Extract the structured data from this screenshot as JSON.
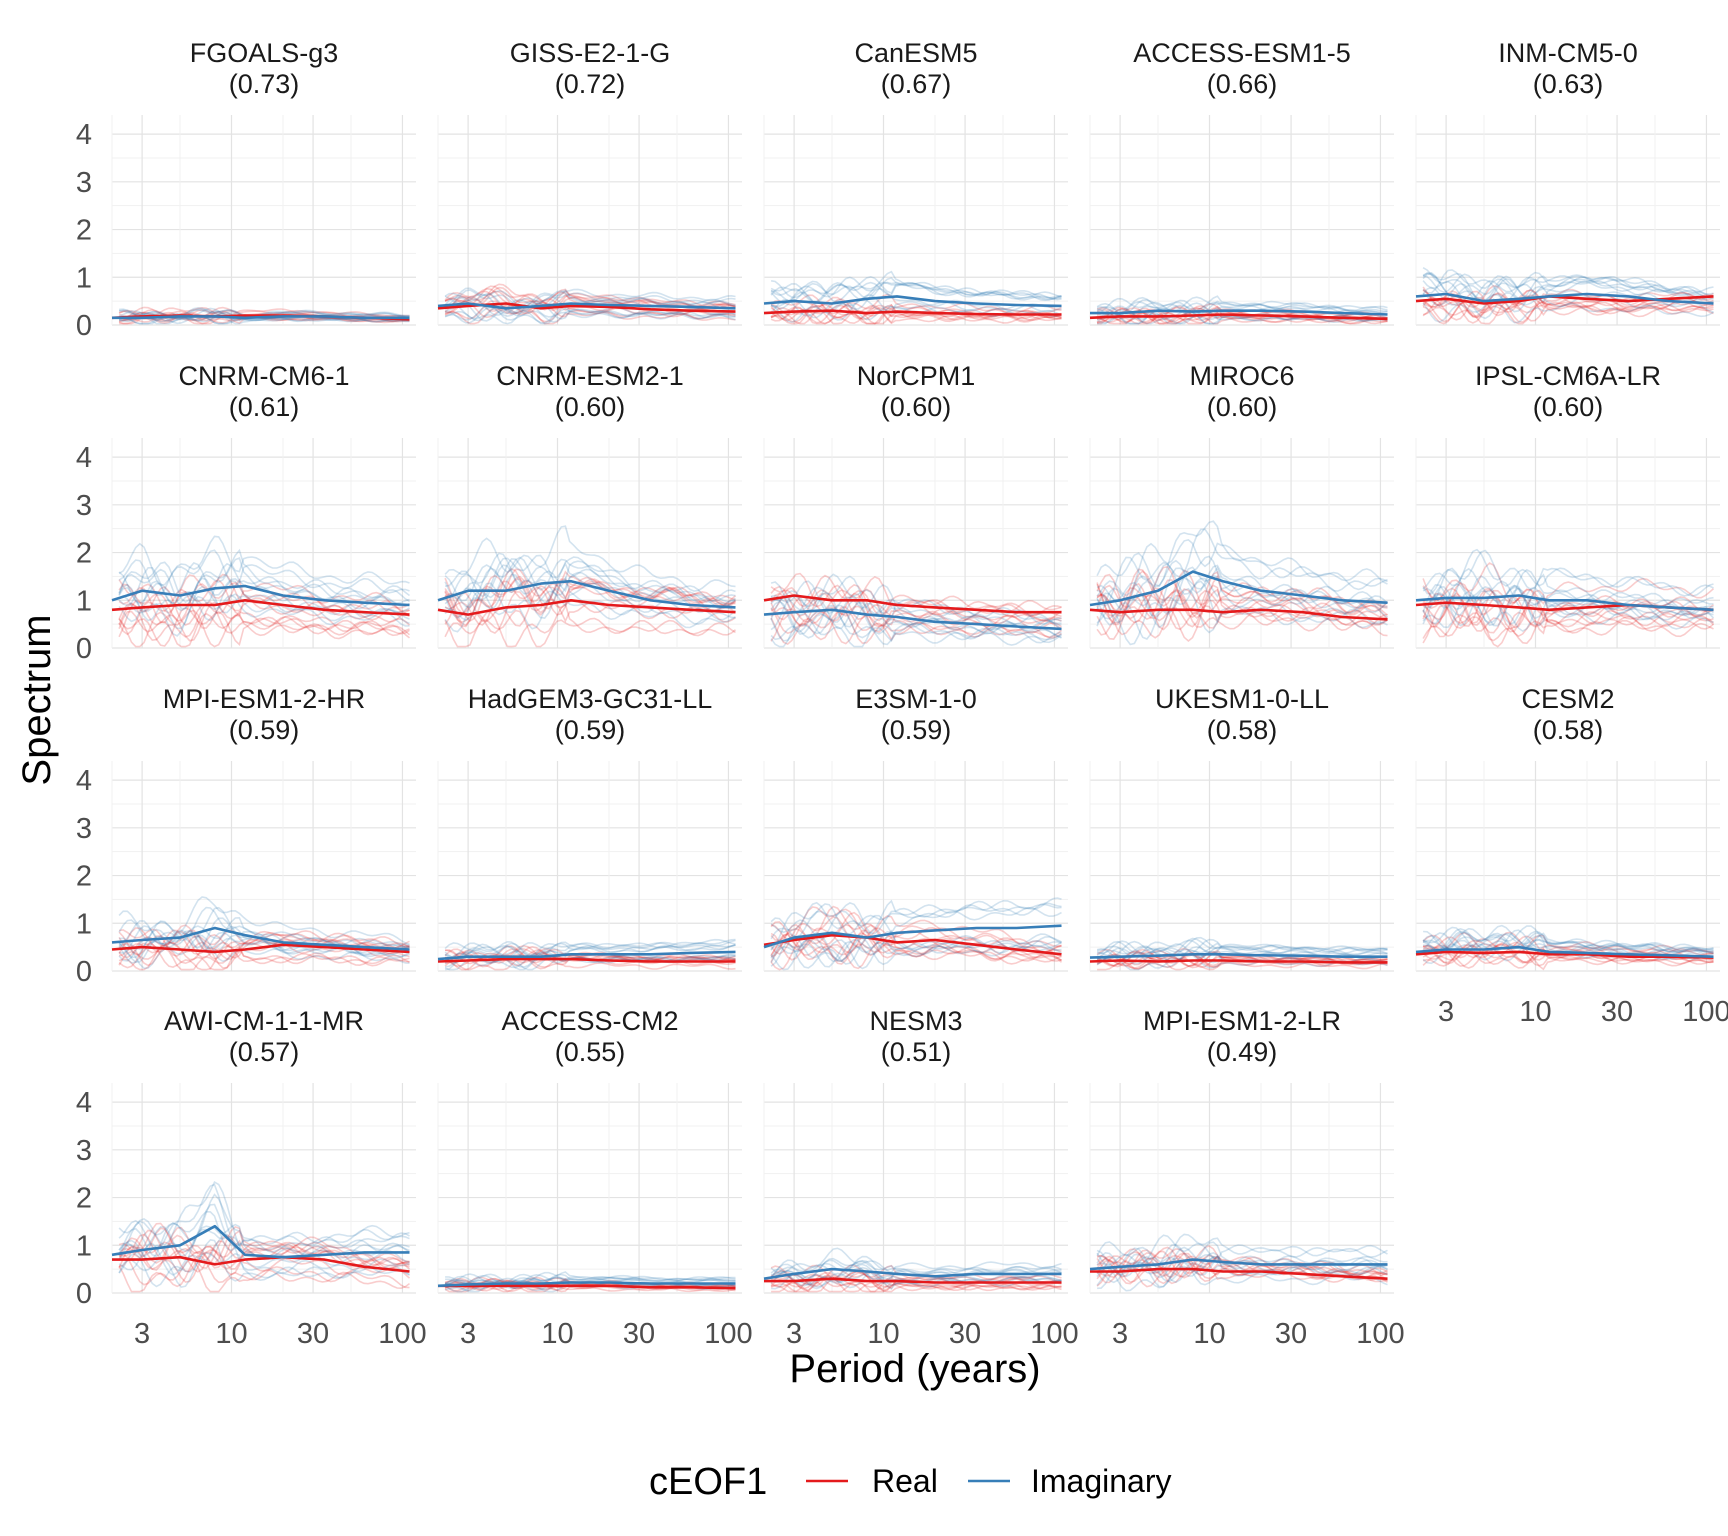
{
  "chart_data": {
    "type": "line",
    "x_axis_label": "Period (years)",
    "y_axis_label": "Spectrum",
    "x_scale": "log",
    "xlim": [
      2.0,
      120
    ],
    "ylim": [
      0,
      4.4
    ],
    "x_ticks": [
      3,
      10,
      30,
      100
    ],
    "x_tick_labels": [
      "3",
      "10",
      "30",
      "100"
    ],
    "y_ticks": [
      0,
      1,
      2,
      3,
      4
    ],
    "y_tick_labels": [
      "0",
      "1",
      "2",
      "3",
      "4"
    ],
    "grid": true,
    "legend": {
      "title": "cEOF1",
      "position": "bottom",
      "entries": [
        {
          "label": "Real",
          "color": "#e41a1c"
        },
        {
          "label": "Imaginary",
          "color": "#377eb8"
        }
      ]
    },
    "x": [
      2,
      3,
      5,
      8,
      12,
      20,
      35,
      60,
      110
    ],
    "panels": [
      {
        "model": "FGOALS-g3",
        "score": "(0.73)",
        "real": [
          0.15,
          0.18,
          0.2,
          0.18,
          0.2,
          0.2,
          0.18,
          0.15,
          0.12
        ],
        "imag": [
          0.15,
          0.15,
          0.18,
          0.18,
          0.15,
          0.18,
          0.18,
          0.15,
          0.15
        ],
        "spread": 0.2
      },
      {
        "model": "GISS-E2-1-G",
        "score": "(0.72)",
        "real": [
          0.35,
          0.4,
          0.45,
          0.35,
          0.4,
          0.38,
          0.33,
          0.3,
          0.28
        ],
        "imag": [
          0.4,
          0.45,
          0.35,
          0.4,
          0.45,
          0.42,
          0.4,
          0.38,
          0.35
        ],
        "spread": 0.35
      },
      {
        "model": "CanESM5",
        "score": "(0.67)",
        "real": [
          0.25,
          0.28,
          0.3,
          0.25,
          0.28,
          0.25,
          0.23,
          0.22,
          0.22
        ],
        "imag": [
          0.45,
          0.5,
          0.45,
          0.55,
          0.6,
          0.5,
          0.45,
          0.42,
          0.4
        ],
        "spread": 0.4
      },
      {
        "model": "ACCESS-ESM1-5",
        "score": "(0.66)",
        "real": [
          0.15,
          0.18,
          0.18,
          0.2,
          0.22,
          0.2,
          0.18,
          0.15,
          0.13
        ],
        "imag": [
          0.25,
          0.25,
          0.3,
          0.28,
          0.3,
          0.3,
          0.28,
          0.25,
          0.22
        ],
        "spread": 0.3
      },
      {
        "model": "INM-CM5-0",
        "score": "(0.63)",
        "real": [
          0.5,
          0.55,
          0.45,
          0.5,
          0.6,
          0.55,
          0.5,
          0.55,
          0.6
        ],
        "imag": [
          0.6,
          0.65,
          0.5,
          0.55,
          0.6,
          0.65,
          0.6,
          0.5,
          0.45
        ],
        "spread": 0.5
      },
      {
        "model": "CNRM-CM6-1",
        "score": "(0.61)",
        "real": [
          0.8,
          0.85,
          0.9,
          0.9,
          1.0,
          0.9,
          0.8,
          0.75,
          0.7
        ],
        "imag": [
          1.0,
          1.2,
          1.1,
          1.25,
          1.3,
          1.1,
          1.0,
          0.95,
          0.9
        ],
        "spread": 0.8
      },
      {
        "model": "CNRM-ESM2-1",
        "score": "(0.60)",
        "real": [
          0.8,
          0.7,
          0.85,
          0.9,
          1.0,
          0.9,
          0.85,
          0.8,
          0.75
        ],
        "imag": [
          1.0,
          1.2,
          1.2,
          1.35,
          1.4,
          1.2,
          1.0,
          0.9,
          0.85
        ],
        "spread": 0.8
      },
      {
        "model": "NorCPM1",
        "score": "(0.60)",
        "real": [
          1.0,
          1.1,
          1.0,
          1.0,
          0.9,
          0.85,
          0.8,
          0.75,
          0.75
        ],
        "imag": [
          0.7,
          0.75,
          0.8,
          0.7,
          0.65,
          0.55,
          0.5,
          0.45,
          0.4
        ],
        "spread": 0.7
      },
      {
        "model": "MIROC6",
        "score": "(0.60)",
        "real": [
          0.8,
          0.75,
          0.8,
          0.8,
          0.75,
          0.8,
          0.75,
          0.65,
          0.6
        ],
        "imag": [
          0.9,
          1.0,
          1.2,
          1.6,
          1.4,
          1.2,
          1.1,
          1.0,
          0.95
        ],
        "spread": 0.9
      },
      {
        "model": "IPSL-CM6A-LR",
        "score": "(0.60)",
        "real": [
          0.9,
          0.95,
          0.9,
          0.85,
          0.8,
          0.85,
          0.9,
          0.85,
          0.8
        ],
        "imag": [
          1.0,
          1.05,
          1.05,
          1.1,
          1.0,
          1.0,
          0.9,
          0.85,
          0.8
        ],
        "spread": 0.8
      },
      {
        "model": "MPI-ESM1-2-HR",
        "score": "(0.59)",
        "real": [
          0.45,
          0.5,
          0.45,
          0.4,
          0.45,
          0.55,
          0.5,
          0.45,
          0.4
        ],
        "imag": [
          0.6,
          0.65,
          0.7,
          0.9,
          0.75,
          0.6,
          0.55,
          0.5,
          0.45
        ],
        "spread": 0.55
      },
      {
        "model": "HadGEM3-GC31-LL",
        "score": "(0.59)",
        "real": [
          0.2,
          0.22,
          0.25,
          0.25,
          0.25,
          0.22,
          0.2,
          0.2,
          0.2
        ],
        "imag": [
          0.25,
          0.3,
          0.3,
          0.3,
          0.35,
          0.35,
          0.35,
          0.38,
          0.4
        ],
        "spread": 0.3
      },
      {
        "model": "E3SM-1-0",
        "score": "(0.59)",
        "real": [
          0.55,
          0.65,
          0.75,
          0.7,
          0.6,
          0.65,
          0.55,
          0.45,
          0.35
        ],
        "imag": [
          0.5,
          0.7,
          0.8,
          0.7,
          0.8,
          0.85,
          0.9,
          0.9,
          0.95
        ],
        "spread": 0.6
      },
      {
        "model": "UKESM1-0-LL",
        "score": "(0.58)",
        "real": [
          0.2,
          0.22,
          0.2,
          0.22,
          0.22,
          0.2,
          0.2,
          0.18,
          0.18
        ],
        "imag": [
          0.28,
          0.3,
          0.32,
          0.35,
          0.35,
          0.33,
          0.32,
          0.3,
          0.3
        ],
        "spread": 0.3
      },
      {
        "model": "CESM2",
        "score": "(0.58)",
        "real": [
          0.35,
          0.4,
          0.38,
          0.4,
          0.35,
          0.35,
          0.3,
          0.3,
          0.28
        ],
        "imag": [
          0.4,
          0.45,
          0.45,
          0.5,
          0.4,
          0.38,
          0.35,
          0.33,
          0.3
        ],
        "spread": 0.4
      },
      {
        "model": "AWI-CM-1-1-MR",
        "score": "(0.57)",
        "real": [
          0.7,
          0.7,
          0.75,
          0.6,
          0.7,
          0.75,
          0.7,
          0.55,
          0.45
        ],
        "imag": [
          0.8,
          0.9,
          1.0,
          1.4,
          0.8,
          0.75,
          0.8,
          0.85,
          0.85
        ],
        "spread": 0.7
      },
      {
        "model": "ACCESS-CM2",
        "score": "(0.55)",
        "real": [
          0.15,
          0.15,
          0.15,
          0.15,
          0.15,
          0.15,
          0.12,
          0.12,
          0.1
        ],
        "imag": [
          0.15,
          0.18,
          0.2,
          0.2,
          0.22,
          0.22,
          0.2,
          0.2,
          0.2
        ],
        "spread": 0.2
      },
      {
        "model": "NESM3",
        "score": "(0.51)",
        "real": [
          0.25,
          0.25,
          0.3,
          0.25,
          0.25,
          0.22,
          0.22,
          0.22,
          0.22
        ],
        "imag": [
          0.3,
          0.4,
          0.5,
          0.45,
          0.4,
          0.35,
          0.4,
          0.4,
          0.4
        ],
        "spread": 0.35
      },
      {
        "model": "MPI-ESM1-2-LR",
        "score": "(0.49)",
        "real": [
          0.45,
          0.45,
          0.5,
          0.5,
          0.45,
          0.45,
          0.4,
          0.35,
          0.3
        ],
        "imag": [
          0.5,
          0.55,
          0.6,
          0.7,
          0.65,
          0.6,
          0.6,
          0.6,
          0.6
        ],
        "spread": 0.55
      }
    ]
  }
}
